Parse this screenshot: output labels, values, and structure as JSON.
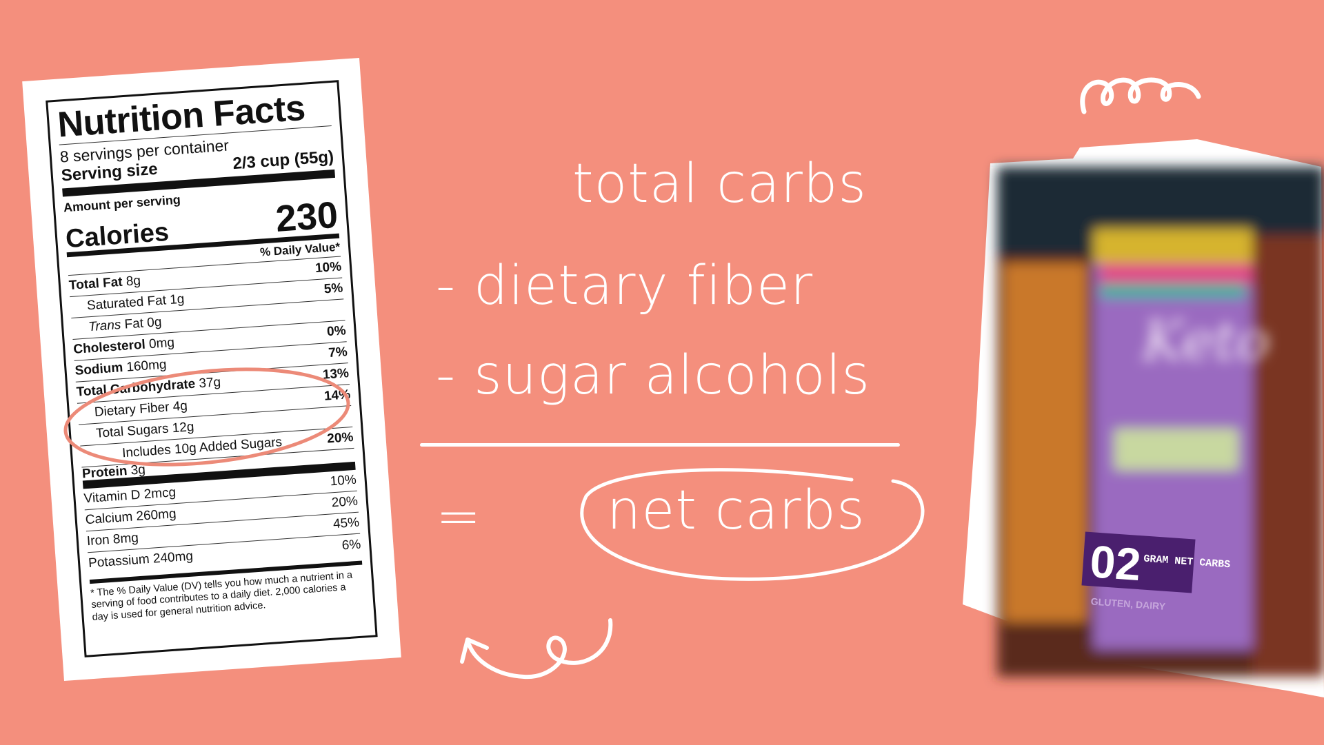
{
  "nutrition_label": {
    "title": "Nutrition Facts",
    "servings": "8 servings per container",
    "serving_size_label": "Serving size",
    "serving_size_value": "2/3 cup (55g)",
    "amount_per_serving": "Amount per serving",
    "calories_label": "Calories",
    "calories_value": "230",
    "dv_header": "% Daily Value*",
    "rows": [
      {
        "name": "Total Fat",
        "amount": "8g",
        "pct": "10%"
      },
      {
        "name": "Saturated Fat",
        "amount": "1g",
        "pct": "5%"
      },
      {
        "name": "Trans",
        "amount": "Fat 0g",
        "pct": ""
      },
      {
        "name": "Cholesterol",
        "amount": "0mg",
        "pct": "0%"
      },
      {
        "name": "Sodium",
        "amount": "160mg",
        "pct": "7%"
      },
      {
        "name": "Total Carbohydrate",
        "amount": "37g",
        "pct": "13%"
      },
      {
        "name": "Dietary Fiber",
        "amount": "4g",
        "pct": "14%"
      },
      {
        "name": "Total Sugars",
        "amount": "12g",
        "pct": ""
      },
      {
        "name": "Includes 10g Added Sugars",
        "amount": "",
        "pct": "20%"
      },
      {
        "name": "Protein",
        "amount": "3g",
        "pct": ""
      }
    ],
    "vitamins": [
      {
        "name": "Vitamin D 2mcg",
        "pct": "10%"
      },
      {
        "name": "Calcium 260mg",
        "pct": "20%"
      },
      {
        "name": "Iron 8mg",
        "pct": "45%"
      },
      {
        "name": "Potassium 240mg",
        "pct": "6%"
      }
    ],
    "footnote": "* The % Daily Value (DV) tells you how much a nutrient in a serving of food contributes to a daily diet. 2,000 calories a day is used for general nutrition advice."
  },
  "formula": {
    "line1": "total carbs",
    "line2": "-  dietary fiber",
    "line3": "- sugar alcohols",
    "equals": "=",
    "result": "net carbs"
  },
  "product": {
    "badge_number": "02",
    "badge_text": "GRAM NET CARBS",
    "brand": "Keto",
    "subtext": "GLUTEN, DAIRY"
  },
  "colors": {
    "background": "#f48f7d",
    "highlight_circle": "#ec8a78",
    "text": "#ffffff"
  }
}
